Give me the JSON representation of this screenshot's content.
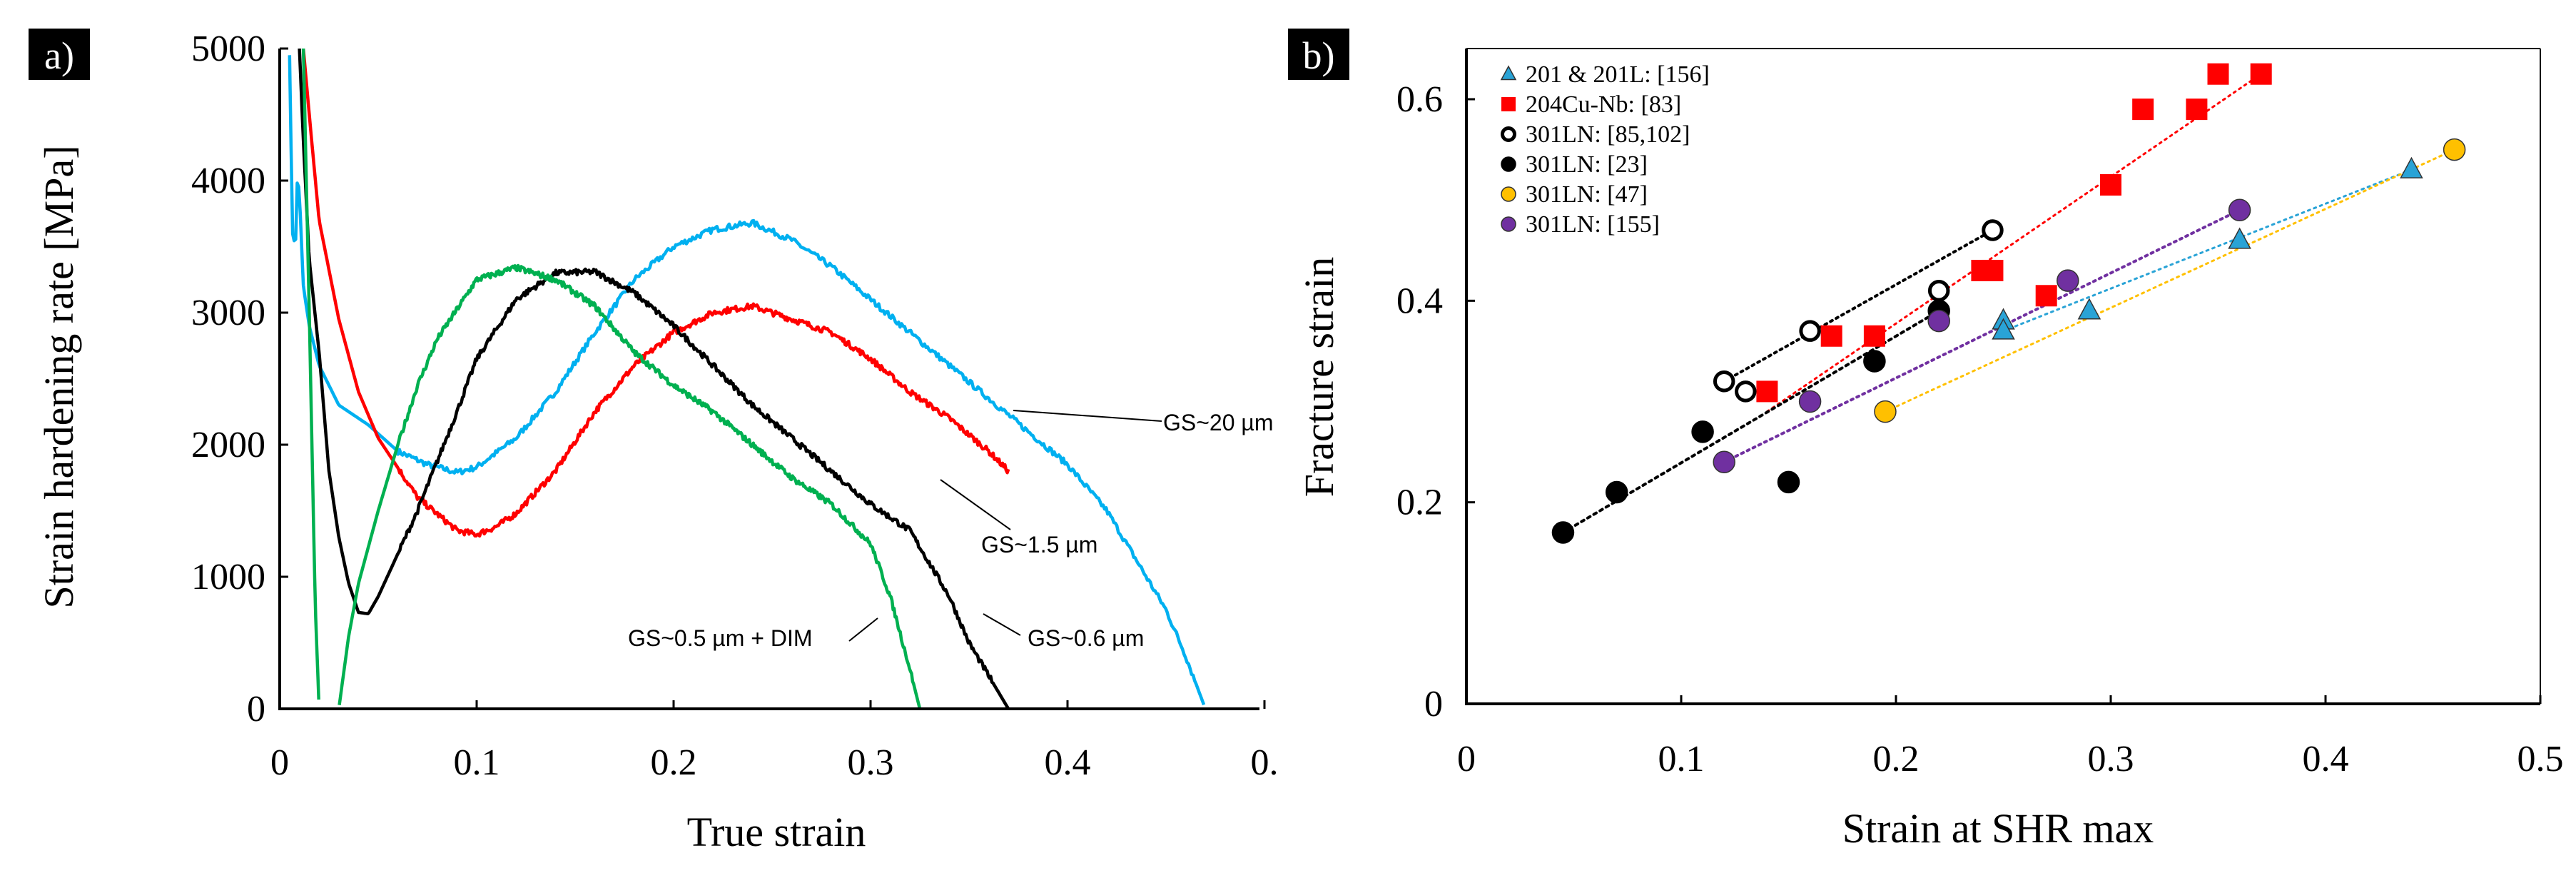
{
  "chart_data": [
    {
      "panel": "a)",
      "type": "line",
      "title": "",
      "xlabel": "True strain",
      "ylabel": "Strain hardening rate [MPa]",
      "xlim": [
        0,
        0.5
      ],
      "ylim": [
        0,
        5000
      ],
      "x_ticks": [
        "0",
        "0.1",
        "0.2",
        "0.3",
        "0.4",
        "0."
      ],
      "y_ticks": [
        "0",
        "1000",
        "2000",
        "3000",
        "4000",
        "5000"
      ],
      "grid": false,
      "series": [
        {
          "name": "GS~20 µm",
          "color": "#00b0f0",
          "x": [
            0.005,
            0.0065,
            0.008,
            0.009,
            0.01,
            0.012,
            0.015,
            0.02,
            0.03,
            0.045,
            0.06,
            0.075,
            0.09,
            0.1,
            0.12,
            0.14,
            0.16,
            0.18,
            0.2,
            0.22,
            0.24,
            0.26,
            0.28,
            0.3,
            0.32,
            0.34,
            0.36,
            0.38,
            0.4,
            0.42,
            0.44,
            0.45,
            0.46,
            0.47
          ],
          "y": [
            4950,
            3600,
            3500,
            4050,
            3900,
            3200,
            2900,
            2600,
            2300,
            2150,
            1950,
            1850,
            1790,
            1830,
            2050,
            2400,
            2850,
            3250,
            3500,
            3630,
            3680,
            3550,
            3350,
            3100,
            2850,
            2600,
            2350,
            2100,
            1850,
            1500,
            1000,
            750,
            400,
            0
          ]
        },
        {
          "name": "GS~1.5 µm",
          "color": "#ff0000",
          "x": [
            0.012,
            0.015,
            0.02,
            0.03,
            0.04,
            0.05,
            0.07,
            0.09,
            0.1,
            0.11,
            0.12,
            0.14,
            0.16,
            0.18,
            0.2,
            0.22,
            0.24,
            0.26,
            0.28,
            0.3,
            0.32,
            0.34,
            0.36,
            0.37
          ],
          "y": [
            5000,
            4500,
            3700,
            2950,
            2400,
            2050,
            1600,
            1350,
            1320,
            1380,
            1480,
            1800,
            2250,
            2600,
            2850,
            3000,
            3050,
            2950,
            2850,
            2650,
            2400,
            2200,
            1950,
            1800
          ]
        },
        {
          "name": "GS~0.6 µm",
          "color": "#000000",
          "x": [
            0.01,
            0.012,
            0.015,
            0.02,
            0.025,
            0.03,
            0.035,
            0.04,
            0.045,
            0.05,
            0.07,
            0.09,
            0.1,
            0.12,
            0.14,
            0.16,
            0.18,
            0.2,
            0.22,
            0.24,
            0.26,
            0.28,
            0.3,
            0.32,
            0.34,
            0.35,
            0.36,
            0.37
          ],
          "y": [
            5000,
            4300,
            3400,
            2700,
            1800,
            1300,
            950,
            730,
            720,
            850,
            1500,
            2250,
            2650,
            3100,
            3300,
            3310,
            3150,
            2900,
            2600,
            2300,
            2050,
            1800,
            1550,
            1350,
            850,
            500,
            250,
            0
          ]
        },
        {
          "name": "GS~0.5 µm + DIM",
          "color": "#00b050",
          "x": [
            0.012,
            0.015,
            0.018,
            0.02,
            0.022,
            0.03,
            0.035,
            0.04,
            0.05,
            0.06,
            0.07,
            0.08,
            0.1,
            0.12,
            0.14,
            0.16,
            0.18,
            0.2,
            0.22,
            0.24,
            0.26,
            0.28,
            0.3,
            0.31,
            0.32,
            0.325
          ],
          "y": [
            5000,
            3000,
            800,
            0,
            null,
            0,
            550,
            950,
            1500,
            2000,
            2450,
            2800,
            3250,
            3340,
            3250,
            3050,
            2700,
            2450,
            2250,
            2000,
            1750,
            1550,
            1250,
            850,
            300,
            0
          ]
        }
      ],
      "annotations": [
        "GS~20 µm",
        "GS~1.5 µm",
        "GS~0.5 µm + DIM",
        "GS~0.6 µm"
      ]
    },
    {
      "panel": "b)",
      "type": "scatter",
      "title": "",
      "xlabel": "Strain at SHR max",
      "ylabel": "Fracture strain",
      "xlim": [
        0,
        0.5
      ],
      "ylim": [
        0,
        0.65
      ],
      "x_ticks": [
        "0",
        "0.1",
        "0.2",
        "0.3",
        "0.4",
        "0.5"
      ],
      "y_ticks": [
        "0",
        "0.2",
        "0.4",
        "0.6"
      ],
      "grid": false,
      "legend_position": "top-left",
      "series": [
        {
          "name": "201 & 201L: [156]",
          "marker": "triangle",
          "color": "#29a3d6",
          "x": [
            0.25,
            0.25,
            0.29,
            0.36,
            0.44
          ],
          "y": [
            0.38,
            0.37,
            0.39,
            0.46,
            0.53
          ],
          "trendline": [
            [
              0.25,
              0.37
            ],
            [
              0.44,
              0.53
            ]
          ]
        },
        {
          "name": "204Cu-Nb: [83]",
          "marker": "square",
          "color": "#ff0000",
          "x": [
            0.14,
            0.17,
            0.19,
            0.24,
            0.245,
            0.27,
            0.3,
            0.315,
            0.34,
            0.35,
            0.37
          ],
          "y": [
            0.31,
            0.365,
            0.365,
            0.43,
            0.43,
            0.405,
            0.515,
            0.59,
            0.59,
            0.625,
            0.625
          ],
          "trendline": [
            [
              0.14,
              0.29
            ],
            [
              0.37,
              0.625
            ]
          ]
        },
        {
          "name": "301LN: [85,102]",
          "marker": "open-circle",
          "color": "#000000",
          "x": [
            0.12,
            0.13,
            0.16,
            0.22,
            0.245
          ],
          "y": [
            0.32,
            0.31,
            0.37,
            0.41,
            0.47
          ],
          "trendline": [
            [
              0.12,
              0.32
            ],
            [
              0.245,
              0.47
            ]
          ]
        },
        {
          "name": "301LN: [23]",
          "marker": "circle",
          "color": "#000000",
          "x": [
            0.045,
            0.07,
            0.11,
            0.15,
            0.19,
            0.22
          ],
          "y": [
            0.17,
            0.21,
            0.27,
            0.22,
            0.34,
            0.39
          ],
          "trendline": [
            [
              0.045,
              0.17
            ],
            [
              0.22,
              0.39
            ]
          ]
        },
        {
          "name": "301LN: [47]",
          "marker": "circle",
          "color": "#ffc000",
          "x": [
            0.195,
            0.46
          ],
          "y": [
            0.29,
            0.55
          ],
          "trendline": [
            [
              0.195,
              0.29
            ],
            [
              0.46,
              0.55
            ]
          ]
        },
        {
          "name": "301LN: [155]",
          "marker": "circle",
          "color": "#7030a0",
          "x": [
            0.12,
            0.16,
            0.22,
            0.28,
            0.36
          ],
          "y": [
            0.24,
            0.3,
            0.38,
            0.42,
            0.49
          ],
          "trendline": [
            [
              0.12,
              0.24
            ],
            [
              0.36,
              0.49
            ]
          ]
        }
      ]
    }
  ]
}
